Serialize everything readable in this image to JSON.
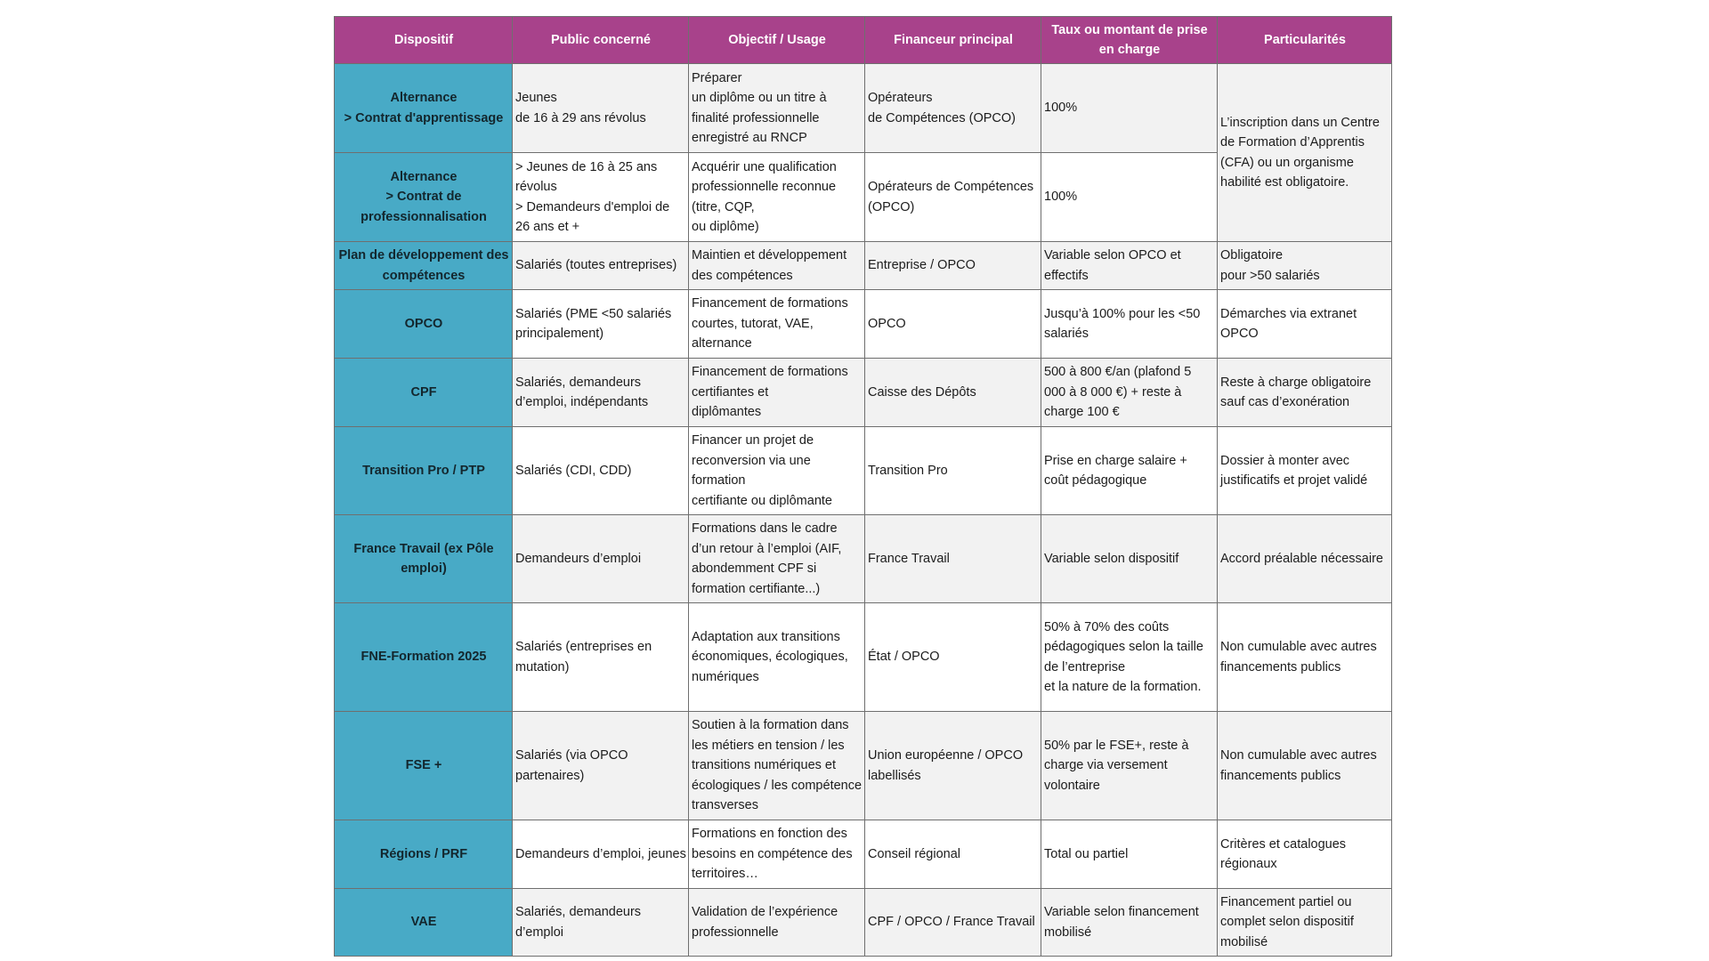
{
  "table": {
    "headers": [
      "Dispositif",
      "Public concerné",
      "Objectif / Usage",
      "Financeur principal",
      "Taux ou montant de prise en charge",
      "Particularités"
    ],
    "rows": [
      {
        "dispositif": "Alternance\n> Contrat d'apprentissage",
        "public": "Jeunes\n de 16 à 29 ans révolus",
        "objectif": "Préparer\n un diplôme ou un titre à finalité professionnelle enregistré au RNCP",
        "financeur": "Opérateurs\n de Compétences (OPCO)",
        "taux": "100%"
      },
      {
        "dispositif": "Alternance\n> Contrat de professionnalisation",
        "public": "> Jeunes de 16 à 25 ans révolus\n  > Demandeurs d'emploi de 26 ans et +",
        "objectif": "Acquérir une qualification professionnelle reconnue (titre, CQP,\n ou diplôme)",
        "financeur": "Opérateurs de Compétences (OPCO)",
        "taux": "100%"
      },
      {
        "dispositif": "Plan de développement des compétences",
        "public": "Salariés (toutes entreprises)",
        "objectif": "Maintien et développement des compétences",
        "financeur": "Entreprise / OPCO",
        "taux": "Variable selon OPCO et effectifs",
        "particularites": "Obligatoire\n pour >50 salariés"
      },
      {
        "dispositif": "OPCO",
        "public": "Salariés (PME  <50  salariés principalement)",
        "objectif": "Financement de formations courtes, tutorat, VAE, alternance",
        "financeur": "OPCO",
        "taux": "Jusqu’à 100% pour les <50 salariés",
        "particularites": "Démarches via extranet OPCO"
      },
      {
        "dispositif": "CPF",
        "public": "Salariés, demandeurs d’emploi, indépendants",
        "objectif": "Financement de formations certifiantes et\n diplômantes",
        "financeur": "Caisse des Dépôts",
        "taux": "500 à 800 €/an (plafond 5 000 à 8 000 €) + reste à charge 100 €",
        "particularites": "Reste à charge obligatoire sauf cas d’exonération"
      },
      {
        "dispositif": "Transition Pro / PTP",
        "public": "Salariés (CDI, CDD)",
        "objectif": "Financer un projet de reconversion via une formation\n certifiante ou diplômante",
        "financeur": "Transition Pro",
        "taux": "Prise en charge salaire + coût pédagogique",
        "particularites": "Dossier à monter avec justificatifs et projet validé"
      },
      {
        "dispositif": "France Travail (ex Pôle emploi)",
        "public": "Demandeurs d’emploi",
        "objectif": "Formations dans le cadre d’un retour à l’emploi (AIF,\n abondemment CPF si formation certifiante...)",
        "financeur": "France Travail",
        "taux": "Variable selon dispositif",
        "particularites": "Accord préalable nécessaire"
      },
      {
        "dispositif": "FNE-Formation 2025",
        "public": "Salariés (entreprises en mutation)",
        "objectif": "Adaptation aux transitions économiques, écologiques, numériques",
        "financeur": "État / OPCO",
        "taux": "50% à 70% des coûts pédagogiques selon la taille de l’entreprise\n et la nature de la formation.",
        "particularites": "Non cumulable avec autres financements publics"
      },
      {
        "dispositif": "FSE +",
        "public": "Salariés (via OPCO partenaires)",
        "objectif": "Soutien à la formation dans les métiers en tension / les\n transitions numériques et écologiques / les compétence transverses",
        "financeur": "Union européenne / OPCO labellisés",
        "taux": "50% par le FSE+, reste à charge via versement volontaire",
        "particularites": "Non cumulable avec autres financements publics"
      },
      {
        "dispositif": "Régions / PRF",
        "public": "Demandeurs d’emploi, jeunes",
        "objectif": "Formations en fonction des besoins en compétence des\n territoires…",
        "financeur": "Conseil régional",
        "taux": "Total ou partiel",
        "particularites": "Critères et catalogues régionaux"
      },
      {
        "dispositif": "VAE",
        "public": "Salariés, demandeurs d’emploi",
        "objectif": "Validation de l’expérience professionnelle",
        "financeur": "CPF / OPCO / France Travail",
        "taux": "Variable selon financement mobilisé",
        "particularites": "Financement partiel ou complet selon dispositif mobilisé"
      }
    ],
    "merged_particularites": "L’inscription dans un Centre de Formation d’Apprentis (CFA) ou un organisme habilité est obligatoire."
  },
  "colors": {
    "header_bg": "#a8428b",
    "first_column_bg": "#48aac6",
    "tinted_row_bg": "#f2f2f2",
    "border": "#6f6f6f"
  }
}
